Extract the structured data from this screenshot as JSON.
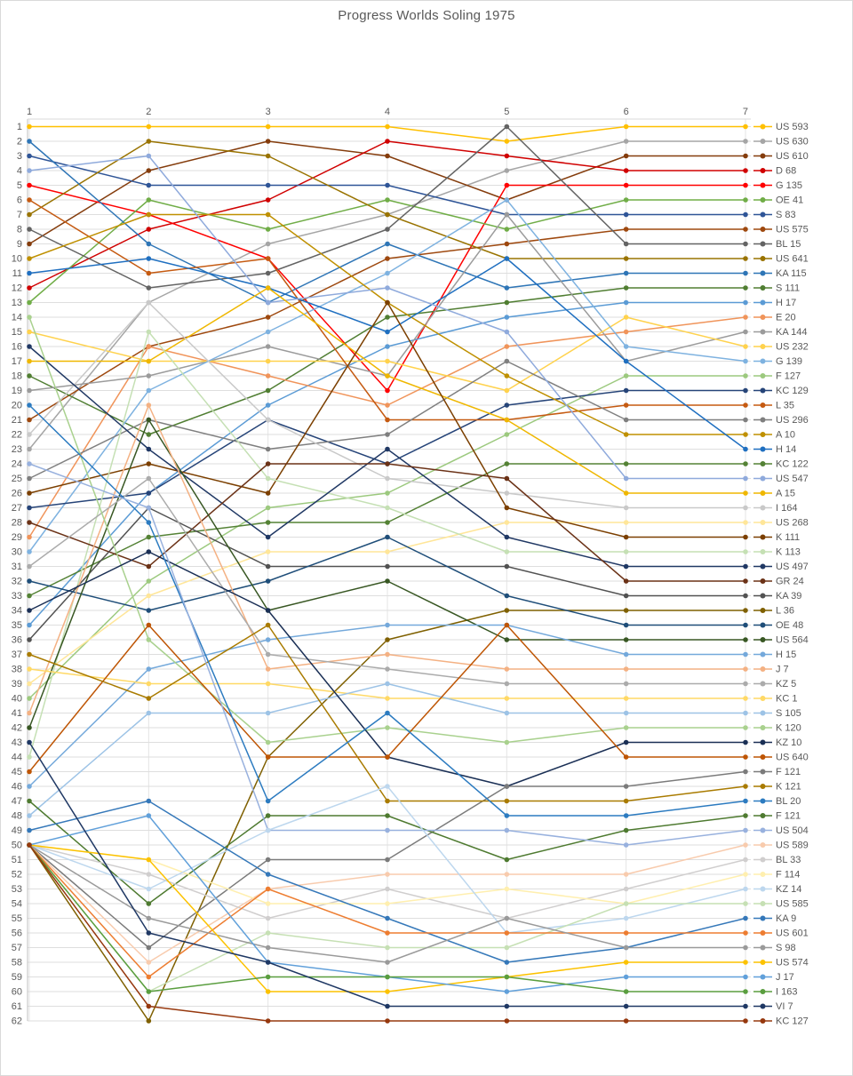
{
  "page": {
    "background": "#ffffff",
    "border_color": "#d9d9d9",
    "text_color": "#595959",
    "grid_color": "#dedede"
  },
  "chart_data": {
    "type": "line",
    "title": "Progress Worlds Soling 1975",
    "x_axis": {
      "position": "top",
      "ticks": [
        "1",
        "2",
        "3",
        "4",
        "5",
        "6",
        "7"
      ]
    },
    "y_axis": {
      "position": "left",
      "inverted": true,
      "min": 1,
      "max": 62,
      "ticks": [
        "1",
        "2",
        "3",
        "4",
        "5",
        "6",
        "7",
        "8",
        "9",
        "10",
        "11",
        "12",
        "13",
        "14",
        "15",
        "16",
        "17",
        "18",
        "19",
        "20",
        "21",
        "22",
        "23",
        "24",
        "25",
        "26",
        "27",
        "28",
        "29",
        "30",
        "31",
        "32",
        "33",
        "34",
        "35",
        "36",
        "37",
        "38",
        "39",
        "40",
        "41",
        "42",
        "43",
        "44",
        "45",
        "46",
        "47",
        "48",
        "49",
        "50",
        "51",
        "52",
        "53",
        "54",
        "55",
        "56",
        "57",
        "58",
        "59",
        "60",
        "61",
        "62"
      ]
    },
    "grid": true,
    "legend_position": "right",
    "series": [
      {
        "name": "US 593",
        "color": "#FFC000",
        "values": [
          1,
          1,
          1,
          1,
          2,
          1,
          1
        ]
      },
      {
        "name": "US 630",
        "color": "#A5A5A5",
        "values": [
          23,
          13,
          9,
          7,
          4,
          2,
          2
        ]
      },
      {
        "name": "US 610",
        "color": "#843C0C",
        "values": [
          9,
          4,
          2,
          3,
          6,
          3,
          3
        ]
      },
      {
        "name": "D 68",
        "color": "#D00000",
        "values": [
          12,
          8,
          6,
          2,
          3,
          4,
          4
        ]
      },
      {
        "name": "G 135",
        "color": "#FF0000",
        "values": [
          5,
          7,
          10,
          19,
          5,
          5,
          5
        ]
      },
      {
        "name": "OE 41",
        "color": "#70AD47",
        "values": [
          13,
          6,
          8,
          6,
          8,
          6,
          6
        ]
      },
      {
        "name": "S 83",
        "color": "#2F5597",
        "values": [
          3,
          5,
          5,
          5,
          7,
          7,
          7
        ]
      },
      {
        "name": "US 575",
        "color": "#9E480E",
        "values": [
          21,
          16,
          14,
          10,
          9,
          8,
          8
        ]
      },
      {
        "name": "BL 15",
        "color": "#636363",
        "values": [
          8,
          12,
          11,
          8,
          1,
          9,
          9
        ]
      },
      {
        "name": "US 641",
        "color": "#997300",
        "values": [
          7,
          2,
          3,
          7,
          10,
          10,
          10
        ]
      },
      {
        "name": "KA 115",
        "color": "#2E75B6",
        "values": [
          2,
          9,
          13,
          9,
          12,
          11,
          11
        ]
      },
      {
        "name": "S 111",
        "color": "#507E32",
        "values": [
          18,
          22,
          19,
          14,
          13,
          12,
          12
        ]
      },
      {
        "name": "H 17",
        "color": "#5B9BD5",
        "values": [
          35,
          26,
          20,
          16,
          14,
          13,
          13
        ]
      },
      {
        "name": "E 20",
        "color": "#F0945A",
        "values": [
          29,
          16,
          18,
          20,
          16,
          15,
          14
        ]
      },
      {
        "name": "KA 144",
        "color": "#9B9B9B",
        "values": [
          19,
          18,
          16,
          18,
          7,
          17,
          15
        ]
      },
      {
        "name": "US 232",
        "color": "#FFD24D",
        "values": [
          15,
          17,
          17,
          17,
          19,
          14,
          16
        ]
      },
      {
        "name": "G 139",
        "color": "#7EB2E0",
        "values": [
          30,
          19,
          15,
          11,
          6,
          16,
          17
        ]
      },
      {
        "name": "F 127",
        "color": "#9CC97E",
        "values": [
          40,
          32,
          27,
          26,
          22,
          18,
          18
        ]
      },
      {
        "name": "KC 129",
        "color": "#264478",
        "values": [
          27,
          26,
          21,
          24,
          20,
          19,
          19
        ]
      },
      {
        "name": "L 35",
        "color": "#C55A11",
        "values": [
          6,
          11,
          10,
          21,
          21,
          20,
          20
        ]
      },
      {
        "name": "US 296",
        "color": "#7F7F7F",
        "values": [
          25,
          21,
          23,
          22,
          17,
          21,
          21
        ]
      },
      {
        "name": "A 10",
        "color": "#BF9000",
        "values": [
          10,
          7,
          7,
          13,
          18,
          22,
          22
        ]
      },
      {
        "name": "H 14",
        "color": "#1F6FC0",
        "values": [
          11,
          10,
          12,
          15,
          10,
          17,
          23
        ]
      },
      {
        "name": "KC 122",
        "color": "#548235",
        "values": [
          33,
          29,
          28,
          28,
          24,
          24,
          24
        ]
      },
      {
        "name": "US 547",
        "color": "#8FAADC",
        "values": [
          4,
          3,
          13,
          12,
          15,
          25,
          25
        ]
      },
      {
        "name": "A 15",
        "color": "#EFB700",
        "values": [
          17,
          17,
          12,
          18,
          21,
          26,
          26
        ]
      },
      {
        "name": "I 164",
        "color": "#C9C9C9",
        "values": [
          22,
          13,
          21,
          25,
          26,
          27,
          27
        ]
      },
      {
        "name": "US 268",
        "color": "#FFE699",
        "values": [
          39,
          33,
          30,
          30,
          28,
          28,
          28
        ]
      },
      {
        "name": "K 111",
        "color": "#7B3F00",
        "values": [
          26,
          24,
          26,
          13,
          27,
          29,
          29
        ]
      },
      {
        "name": "K 113",
        "color": "#C5E0B4",
        "values": [
          44,
          15,
          25,
          27,
          30,
          30,
          30
        ]
      },
      {
        "name": "US 497",
        "color": "#203864",
        "values": [
          16,
          23,
          29,
          23,
          29,
          31,
          31
        ]
      },
      {
        "name": "GR 24",
        "color": "#6B3217",
        "values": [
          28,
          31,
          24,
          24,
          25,
          32,
          32
        ]
      },
      {
        "name": "KA 39",
        "color": "#525252",
        "values": [
          36,
          27,
          31,
          31,
          31,
          33,
          33
        ]
      },
      {
        "name": "L 36",
        "color": "#7F6000",
        "values": [
          50,
          62,
          44,
          36,
          34,
          34,
          34
        ]
      },
      {
        "name": "OE 48",
        "color": "#1F4E79",
        "values": [
          32,
          34,
          32,
          29,
          33,
          35,
          35
        ]
      },
      {
        "name": "US 564",
        "color": "#385723",
        "values": [
          42,
          21,
          34,
          32,
          36,
          36,
          36
        ]
      },
      {
        "name": "H 15",
        "color": "#74A9DB",
        "values": [
          46,
          38,
          36,
          35,
          35,
          37,
          37
        ]
      },
      {
        "name": "J 7",
        "color": "#F4B183",
        "values": [
          41,
          20,
          38,
          37,
          38,
          38,
          38
        ]
      },
      {
        "name": "KZ 5",
        "color": "#ABABAB",
        "values": [
          31,
          25,
          37,
          38,
          39,
          39,
          39
        ]
      },
      {
        "name": "KC 1",
        "color": "#FFD966",
        "values": [
          38,
          39,
          39,
          40,
          40,
          40,
          40
        ]
      },
      {
        "name": "S 105",
        "color": "#9DC3E6",
        "values": [
          48,
          41,
          41,
          39,
          41,
          41,
          41
        ]
      },
      {
        "name": "K 120",
        "color": "#A9D18E",
        "values": [
          14,
          36,
          43,
          42,
          43,
          42,
          42
        ]
      },
      {
        "name": "KZ 10",
        "color": "#1A2F55",
        "values": [
          34,
          30,
          34,
          44,
          46,
          43,
          43
        ]
      },
      {
        "name": "US 640",
        "color": "#BE5504",
        "values": [
          45,
          35,
          44,
          44,
          35,
          44,
          44
        ]
      },
      {
        "name": "F 121",
        "color": "#7B7B7B",
        "values": [
          50,
          57,
          51,
          51,
          46,
          46,
          45
        ]
      },
      {
        "name": "K 121",
        "color": "#A97B00",
        "values": [
          37,
          40,
          35,
          47,
          47,
          47,
          46
        ]
      },
      {
        "name": "BL 20",
        "color": "#2C7BC0",
        "values": [
          20,
          28,
          47,
          41,
          48,
          48,
          47
        ]
      },
      {
        "name": "F 121",
        "color": "#4E7A30",
        "values": [
          47,
          54,
          48,
          48,
          51,
          49,
          48
        ]
      },
      {
        "name": "US 504",
        "color": "#98B1DE",
        "values": [
          24,
          27,
          49,
          49,
          49,
          50,
          49
        ]
      },
      {
        "name": "US 589",
        "color": "#F8CBAD",
        "values": [
          50,
          58,
          53,
          52,
          52,
          52,
          50
        ]
      },
      {
        "name": "BL 33",
        "color": "#D0CECE",
        "values": [
          50,
          52,
          55,
          53,
          55,
          53,
          51
        ]
      },
      {
        "name": "F 114",
        "color": "#FFEFAF",
        "values": [
          50,
          51,
          54,
          54,
          53,
          54,
          52
        ]
      },
      {
        "name": "KZ 14",
        "color": "#BDD7EE",
        "values": [
          50,
          53,
          49,
          46,
          56,
          55,
          53
        ]
      },
      {
        "name": "US 585",
        "color": "#C6E0B4",
        "values": [
          50,
          60,
          56,
          57,
          57,
          54,
          54
        ]
      },
      {
        "name": "KA 9",
        "color": "#3578B9",
        "values": [
          49,
          47,
          52,
          55,
          58,
          57,
          55
        ]
      },
      {
        "name": "US 601",
        "color": "#ED7D31",
        "values": [
          50,
          59,
          53,
          56,
          56,
          56,
          56
        ]
      },
      {
        "name": "S 98",
        "color": "#9A9A9A",
        "values": [
          50,
          55,
          57,
          58,
          55,
          57,
          57
        ]
      },
      {
        "name": "US 574",
        "color": "#FCC200",
        "values": [
          50,
          51,
          60,
          60,
          59,
          58,
          58
        ]
      },
      {
        "name": "J 17",
        "color": "#61A0DA",
        "values": [
          50,
          48,
          58,
          59,
          60,
          59,
          59
        ]
      },
      {
        "name": "I 163",
        "color": "#5A9E3F",
        "values": [
          50,
          60,
          59,
          59,
          59,
          60,
          60
        ]
      },
      {
        "name": "VI 7",
        "color": "#1F3864",
        "values": [
          43,
          56,
          58,
          61,
          61,
          61,
          61
        ]
      },
      {
        "name": "KC 127",
        "color": "#96380E",
        "values": [
          50,
          61,
          62,
          62,
          62,
          62,
          62
        ]
      }
    ]
  }
}
